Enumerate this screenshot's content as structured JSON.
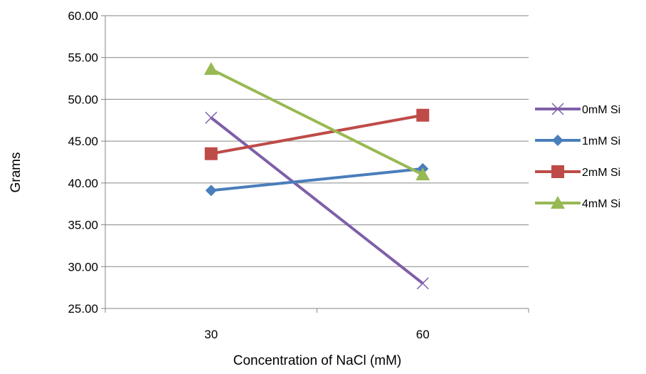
{
  "chart_data": {
    "type": "line",
    "title": "",
    "xlabel": "Concentration of NaCl (mM)",
    "ylabel": "Grams",
    "categories": [
      "30",
      "60"
    ],
    "ylim": [
      25.0,
      60.0
    ],
    "yticks": [
      "25.00",
      "30.00",
      "35.00",
      "40.00",
      "45.00",
      "50.00",
      "55.00",
      "60.00"
    ],
    "grid": "horizontal",
    "legend_position": "right",
    "series": [
      {
        "name": "0mM Si",
        "values": [
          47.8,
          28.0
        ],
        "color": "#7F5FA8",
        "marker": "x"
      },
      {
        "name": "1mM Si",
        "values": [
          39.1,
          41.7
        ],
        "color": "#4A7EBB",
        "marker": "diamond"
      },
      {
        "name": "2mM Si",
        "values": [
          43.5,
          48.1
        ],
        "color": "#BE4B48",
        "marker": "square"
      },
      {
        "name": "4mM Si",
        "values": [
          53.6,
          41.0
        ],
        "color": "#98B954",
        "marker": "triangle"
      }
    ]
  }
}
